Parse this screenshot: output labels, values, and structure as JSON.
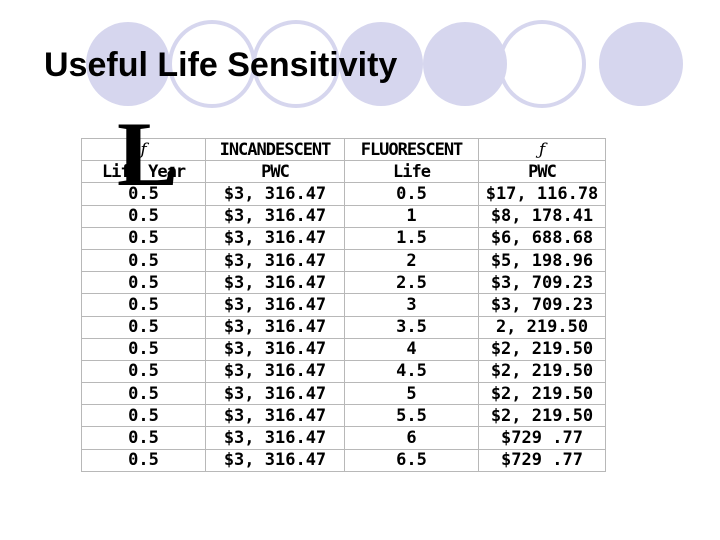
{
  "slide": {
    "title": "Useful Life Sensitivity",
    "accent_color": "#d6d6ee"
  },
  "table": {
    "header_row1": [
      "ƒ",
      "INCANDESCENT",
      "FLUORESCENT",
      "ƒ"
    ],
    "header_row2": [
      "Life Year",
      "PWC",
      "Life",
      "PWC"
    ],
    "rows": [
      [
        "0.5",
        "$3, 316.47",
        "0.5",
        "$17, 116.78"
      ],
      [
        "0.5",
        "$3, 316.47",
        "1",
        "$8, 178.41"
      ],
      [
        "0.5",
        "$3, 316.47",
        "1.5",
        "$6, 688.68"
      ],
      [
        "0.5",
        "$3, 316.47",
        "2",
        "$5, 198.96"
      ],
      [
        "0.5",
        "$3, 316.47",
        "2.5",
        "$3, 709.23"
      ],
      [
        "0.5",
        "$3, 316.47",
        "3",
        "$3, 709.23"
      ],
      [
        "0.5",
        "$3, 316.47",
        "3.5",
        "2, 219.50"
      ],
      [
        "0.5",
        "$3, 316.47",
        "4",
        "$2, 219.50"
      ],
      [
        "0.5",
        "$3, 316.47",
        "4.5",
        "$2, 219.50"
      ],
      [
        "0.5",
        "$3, 316.47",
        "5",
        "$2, 219.50"
      ],
      [
        "0.5",
        "$3, 316.47",
        "5.5",
        "$2, 219.50"
      ],
      [
        "0.5",
        "$3, 316.47",
        "6",
        "$729 .77"
      ],
      [
        "0.5",
        "$3, 316.47",
        "6.5",
        "$729 .77"
      ]
    ]
  }
}
